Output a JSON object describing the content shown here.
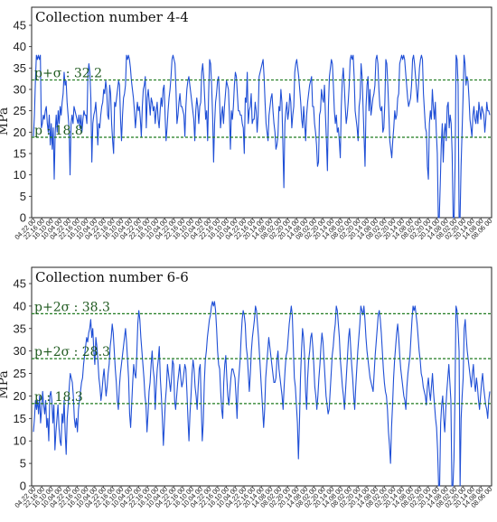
{
  "chart_data": [
    {
      "type": "line",
      "title": "Collection number 4-4",
      "ylabel": "MPa",
      "ylim": [
        0,
        45
      ],
      "yticks": [
        0,
        5,
        10,
        15,
        20,
        25,
        30,
        35,
        40,
        45
      ],
      "xtick_labels": [
        "04.22 00",
        "22.16 00",
        "16.10 00",
        "10.04 00",
        "04.22 00",
        "22.16 00",
        "16.10 00",
        "10.04 00",
        "04.22 00",
        "22.16 00",
        "16.10 00",
        "10.04 00",
        "04.22 00",
        "22.16 00",
        "16.10 00",
        "10.04 00",
        "04.22 00",
        "22.16 00",
        "16.10 00",
        "10.04 00",
        "04.22 00",
        "22.16 00",
        "16.10 00",
        "10.04 00",
        "04.22 00",
        "22.16 00",
        "20.14 00",
        "14.08 00",
        "08.02 00",
        "02.20 00",
        "20.14 00",
        "14.08 00",
        "08.02 00",
        "02.20 00",
        "20.14 00",
        "14.08 00",
        "08.02 00",
        "02.20 00",
        "20.14 00",
        "14.08 00",
        "08.02 00",
        "02.20 00",
        "20.14 00",
        "14.08 00",
        "08.02 00",
        "02.20 00",
        "20.14 00",
        "14.08 00",
        "08.02 00",
        "02.20 00",
        "20.14 00",
        "14.08 00",
        "08.06 00"
      ],
      "reference_lines": [
        {
          "label": "p+σ : 32.2",
          "value": 32.2,
          "color": "#1f7a1f"
        },
        {
          "label": "p : 18.8",
          "value": 18.8,
          "color": "#1f7a1f"
        }
      ],
      "series": [
        {
          "color": "#1f4fd6",
          "values": [
            19,
            24,
            32,
            38,
            37,
            38,
            37,
            38,
            21,
            22,
            24,
            23,
            25,
            26,
            22,
            20,
            24,
            17,
            22,
            16,
            21,
            9,
            20,
            24,
            20,
            25,
            22,
            26,
            24,
            27,
            29,
            34,
            31,
            32,
            27,
            24,
            21,
            10,
            22,
            24,
            22,
            26,
            25,
            24,
            23,
            22,
            24,
            21,
            24,
            20,
            23,
            25,
            24,
            24,
            22,
            33,
            36,
            34,
            28,
            13,
            22,
            24,
            25,
            27,
            23,
            17,
            22,
            21,
            24,
            26,
            27,
            30,
            29,
            32,
            30,
            24,
            23,
            31,
            29,
            22,
            18,
            15,
            27,
            26,
            28,
            30,
            32,
            31,
            23,
            18,
            24,
            28,
            29,
            31,
            38,
            37,
            38,
            37,
            35,
            32,
            30,
            28,
            25,
            21,
            24,
            27,
            25,
            26,
            23,
            19,
            26,
            30,
            31,
            33,
            21,
            28,
            30,
            27,
            24,
            28,
            27,
            25,
            26,
            22,
            25,
            27,
            23,
            21,
            25,
            28,
            26,
            30,
            31,
            24,
            18,
            21,
            25,
            28,
            30,
            33,
            37,
            38,
            37,
            36,
            30,
            22,
            24,
            27,
            29,
            26,
            26,
            25,
            24,
            19,
            26,
            30,
            32,
            33,
            31,
            29,
            27,
            25,
            23,
            18,
            25,
            28,
            26,
            22,
            26,
            27,
            34,
            36,
            33,
            28,
            23,
            25,
            18,
            29,
            37,
            36,
            31,
            24,
            13,
            22,
            27,
            29,
            32,
            33,
            28,
            21,
            24,
            26,
            22,
            26,
            29,
            32,
            31,
            30,
            24,
            16,
            25,
            23,
            26,
            31,
            34,
            33,
            29,
            25,
            25,
            24,
            24,
            22,
            21,
            15,
            28,
            27,
            34,
            22,
            25,
            26,
            29,
            22,
            23,
            23,
            27,
            25,
            20,
            24,
            33,
            34,
            35,
            36,
            37,
            33,
            27,
            22,
            20,
            18,
            24,
            26,
            28,
            29,
            25,
            22,
            20,
            16,
            17,
            19,
            26,
            25,
            30,
            27,
            17,
            7,
            22,
            25,
            27,
            23,
            25,
            29,
            27,
            21,
            24,
            26,
            34,
            36,
            37,
            35,
            33,
            30,
            27,
            23,
            21,
            26,
            22,
            18,
            24,
            27,
            29,
            31,
            32,
            33,
            26,
            26,
            22,
            20,
            17,
            12,
            13,
            24,
            25,
            30,
            28,
            27,
            31,
            24,
            18,
            11,
            26,
            33,
            35,
            37,
            36,
            31,
            25,
            22,
            24,
            20,
            21,
            18,
            14,
            26,
            32,
            35,
            31,
            26,
            22,
            24,
            27,
            31,
            37,
            38,
            37,
            38,
            33,
            25,
            23,
            21,
            18,
            26,
            28,
            36,
            33,
            26,
            19,
            12,
            26,
            31,
            33,
            25,
            30,
            24,
            26,
            28,
            29,
            31,
            37,
            38,
            36,
            30,
            26,
            25,
            26,
            20,
            21,
            27,
            37,
            36,
            31,
            25,
            18,
            16,
            14,
            18,
            21,
            25,
            23,
            24,
            28,
            29,
            36,
            37,
            38,
            37,
            38,
            37,
            34,
            31,
            28,
            26,
            27,
            28,
            31,
            37,
            38,
            36,
            33,
            30,
            27,
            31,
            35,
            37,
            38,
            37,
            29,
            25,
            21,
            20,
            12,
            9,
            22,
            25,
            23,
            30,
            26,
            23,
            27,
            20,
            15,
            0,
            0,
            8,
            17,
            22,
            13,
            20,
            22,
            18,
            26,
            27,
            21,
            24,
            22,
            15,
            0,
            0,
            13,
            38,
            37,
            31,
            0,
            0,
            12,
            20,
            28,
            38,
            36,
            31,
            33,
            32,
            28,
            23,
            21,
            19,
            24,
            26,
            23,
            22,
            25,
            22,
            27,
            25,
            23,
            26,
            25,
            24,
            20,
            23,
            27,
            25,
            25,
            24
          ]
        }
      ]
    },
    {
      "type": "line",
      "title": "Collection number 6-6",
      "ylabel": "MPa",
      "ylim": [
        0,
        45
      ],
      "yticks": [
        0,
        5,
        10,
        15,
        20,
        25,
        30,
        35,
        40,
        45
      ],
      "xtick_labels": [
        "04.22 00",
        "22.16 00",
        "16.10 00",
        "10.04 00",
        "04.22 00",
        "22.16 00",
        "16.10 00",
        "10.04 00",
        "04.22 00",
        "22.16 00",
        "16.10 00",
        "10.04 00",
        "04.22 00",
        "22.16 00",
        "16.10 00",
        "10.04 00",
        "04.22 00",
        "22.16 00",
        "16.10 00",
        "10.04 00",
        "04.22 00",
        "22.16 00",
        "16.10 00",
        "10.04 00",
        "04.22 00",
        "22.16 00",
        "20.14 00",
        "14.08 00",
        "08.02 00",
        "02.20 00",
        "20.14 00",
        "14.08 00",
        "08.02 00",
        "02.20 00",
        "20.14 00",
        "14.08 00",
        "08.02 00",
        "02.20 00",
        "20.14 00",
        "14.08 00",
        "08.02 00",
        "02.20 00",
        "20.14 00",
        "14.08 00",
        "08.02 00",
        "02.20 00",
        "20.14 00",
        "14.08 00",
        "08.02 00",
        "02.20 00",
        "20.14 00",
        "14.08 00",
        "08.06 00"
      ],
      "reference_lines": [
        {
          "label": "p+2σ : 38.3",
          "value": 38.3,
          "color": "#1f7a1f"
        },
        {
          "label": "p+2σ : 28.3",
          "value": 28.3,
          "color": "#1f7a1f"
        },
        {
          "label": "p : 18.3",
          "value": 18.3,
          "color": "#1f7a1f"
        }
      ],
      "series": [
        {
          "color": "#1f4fd6",
          "values": [
            12,
            15,
            19,
            17,
            19,
            16,
            20,
            14,
            17,
            21,
            18,
            16,
            19,
            13,
            15,
            10,
            20,
            21,
            19,
            14,
            18,
            8,
            12,
            15,
            18,
            13,
            10,
            9,
            16,
            14,
            19,
            12,
            7,
            15,
            18,
            22,
            25,
            24,
            23,
            20,
            15,
            13,
            15,
            12,
            17,
            19,
            21,
            23,
            24,
            27,
            29,
            31,
            33,
            32,
            34,
            35,
            37,
            33,
            35,
            30,
            27,
            33,
            31,
            28,
            24,
            22,
            19,
            21,
            24,
            26,
            23,
            20,
            22,
            25,
            27,
            31,
            33,
            36,
            34,
            30,
            26,
            23,
            19,
            17,
            22,
            25,
            27,
            29,
            31,
            33,
            35,
            32,
            28,
            24,
            16,
            13,
            18,
            23,
            27,
            25,
            24,
            29,
            36,
            39,
            37,
            33,
            30,
            27,
            24,
            20,
            18,
            12,
            16,
            21,
            23,
            27,
            30,
            26,
            24,
            17,
            22,
            26,
            28,
            31,
            24,
            20,
            15,
            9,
            14,
            19,
            22,
            27,
            25,
            23,
            21,
            24,
            28,
            27,
            19,
            17,
            20,
            23,
            25,
            27,
            24,
            22,
            23,
            25,
            27,
            26,
            21,
            15,
            10,
            16,
            20,
            25,
            28,
            26,
            22,
            20,
            17,
            22,
            26,
            27,
            18,
            10,
            14,
            23,
            28,
            30,
            33,
            35,
            37,
            38,
            40,
            41,
            40,
            41,
            39,
            35,
            30,
            27,
            26,
            21,
            17,
            15,
            23,
            27,
            29,
            24,
            20,
            18,
            21,
            24,
            26,
            26,
            25,
            24,
            20,
            15,
            22,
            25,
            28,
            33,
            37,
            39,
            38,
            36,
            31,
            29,
            25,
            21,
            25,
            30,
            33,
            35,
            37,
            40,
            39,
            36,
            33,
            29,
            25,
            21,
            17,
            13,
            17,
            24,
            27,
            30,
            33,
            31,
            29,
            27,
            25,
            23,
            23,
            24,
            28,
            30,
            26,
            24,
            22,
            20,
            17,
            22,
            26,
            29,
            30,
            33,
            36,
            38,
            40,
            38,
            31,
            24,
            22,
            18,
            14,
            6,
            14,
            24,
            30,
            35,
            33,
            29,
            21,
            17,
            24,
            28,
            30,
            33,
            34,
            31,
            27,
            22,
            20,
            17,
            20,
            24,
            27,
            31,
            34,
            32,
            28,
            24,
            20,
            18,
            16,
            17,
            21,
            25,
            29,
            31,
            34,
            36,
            40,
            39,
            36,
            33,
            28,
            25,
            22,
            20,
            17,
            21,
            25,
            29,
            33,
            35,
            31,
            27,
            24,
            20,
            17,
            22,
            26,
            30,
            33,
            36,
            40,
            39,
            38,
            40,
            37,
            33,
            30,
            28,
            26,
            24,
            23,
            22,
            21,
            25,
            29,
            32,
            35,
            38,
            39,
            37,
            34,
            30,
            26,
            23,
            21,
            20,
            17,
            12,
            9,
            5,
            13,
            18,
            24,
            28,
            31,
            34,
            36,
            33,
            29,
            26,
            24,
            22,
            20,
            19,
            17,
            22,
            25,
            27,
            29,
            33,
            37,
            40,
            39,
            40,
            38,
            36,
            33,
            30,
            28,
            25,
            24,
            22,
            21,
            20,
            18,
            22,
            24,
            21,
            19,
            22,
            25,
            21,
            18,
            15,
            13,
            8,
            0,
            0,
            14,
            18,
            20,
            15,
            12,
            17,
            21,
            24,
            27,
            23,
            19,
            0,
            0,
            6,
            20,
            40,
            39,
            35,
            30,
            0,
            15,
            20,
            24,
            35,
            37,
            33,
            30,
            28,
            26,
            24,
            22,
            25,
            27,
            23,
            21,
            24,
            22,
            19,
            17,
            20,
            23,
            25,
            22,
            20,
            18,
            17,
            15,
            19,
            21
          ]
        }
      ]
    }
  ]
}
